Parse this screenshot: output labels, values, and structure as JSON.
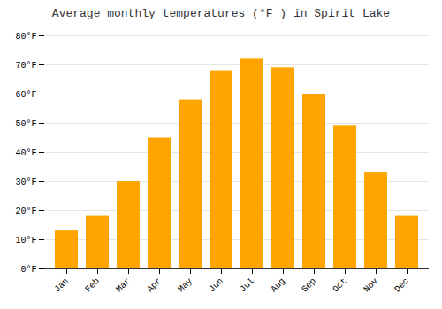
{
  "chart_data": {
    "type": "bar",
    "title": "Average monthly temperatures (°F ) in Spirit Lake",
    "categories": [
      "Jan",
      "Feb",
      "Mar",
      "Apr",
      "May",
      "Jun",
      "Jul",
      "Aug",
      "Sep",
      "Oct",
      "Nov",
      "Dec"
    ],
    "values": [
      13,
      18,
      30,
      45,
      58,
      68,
      72,
      69,
      60,
      49,
      33,
      18
    ],
    "color": "#FFA500",
    "ylim": [
      0,
      80
    ],
    "yticks": [
      {
        "value": 0,
        "label": "0°F"
      },
      {
        "value": 10,
        "label": "10°F"
      },
      {
        "value": 20,
        "label": "20°F"
      },
      {
        "value": 30,
        "label": "30°F"
      },
      {
        "value": 40,
        "label": "40°F"
      },
      {
        "value": 50,
        "label": "50°F"
      },
      {
        "value": 60,
        "label": "60°F"
      },
      {
        "value": 70,
        "label": "70°F"
      },
      {
        "value": 80,
        "label": "80°F"
      }
    ],
    "grid": true
  }
}
